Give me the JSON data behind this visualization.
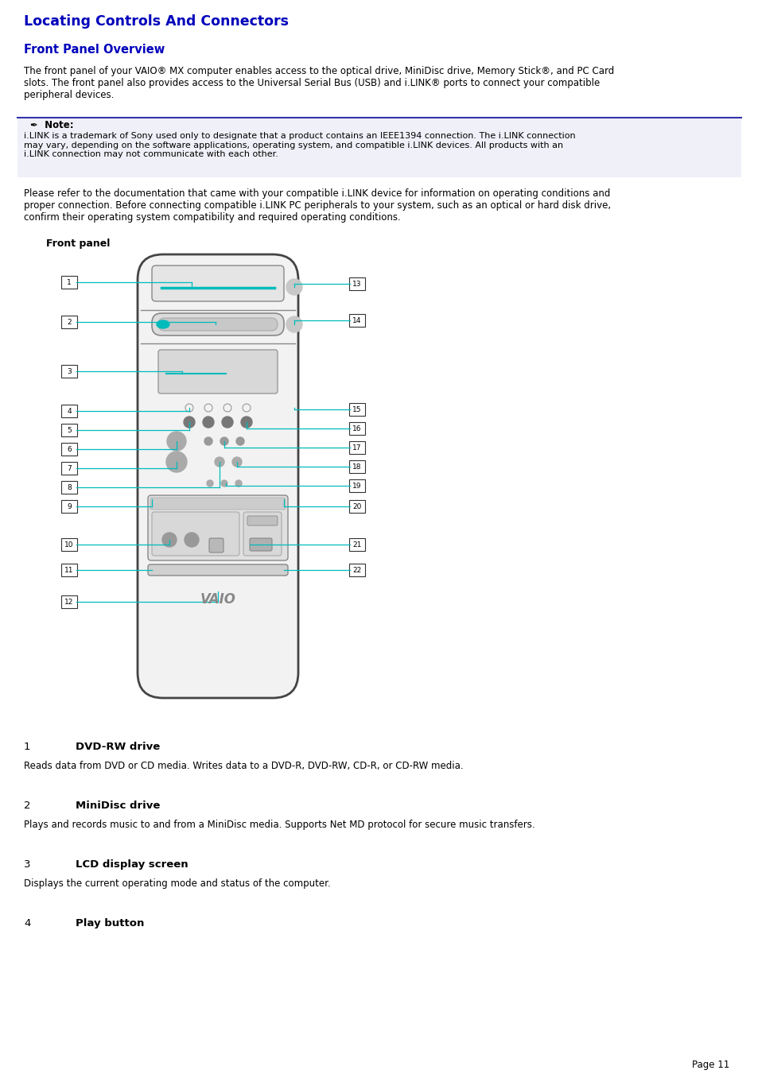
{
  "title": "Locating Controls And Connectors",
  "title_color": "#0000BB",
  "title_fontsize": 12.5,
  "subtitle": "Front Panel Overview",
  "subtitle_color": "#0000BB",
  "subtitle_fontsize": 10.5,
  "body_fontsize": 8.5,
  "para1": "The front panel of your VAIO® MX computer enables access to the optical drive, MiniDisc drive, Memory Stick®, and PC Card\nslots. The front panel also provides access to the Universal Serial Bus (USB) and i.LINK® ports to connect your compatible\nperipheral devices.",
  "note_text": "i.LINK is a trademark of Sony used only to designate that a product contains an IEEE1394 connection. The i.LINK connection\nmay vary, depending on the software applications, operating system, and compatible i.LINK devices. All products with an\ni.LINK connection may not communicate with each other.",
  "para2": "Please refer to the documentation that came with your compatible i.LINK device for information on operating conditions and\nproper connection. Before connecting compatible i.LINK PC peripherals to your system, such as an optical or hard disk drive,\nconfirm their operating system compatibility and required operating conditions.",
  "front_panel_label": "Front panel",
  "items": [
    {
      "num": "1",
      "name": "DVD-RW drive",
      "desc": "Reads data from DVD or CD media. Writes data to a DVD-R, DVD-RW, CD-R, or CD-RW media."
    },
    {
      "num": "2",
      "name": "MiniDisc drive",
      "desc": "Plays and records music to and from a MiniDisc media. Supports Net MD protocol for secure music transfers."
    },
    {
      "num": "3",
      "name": "LCD display screen",
      "desc": "Displays the current operating mode and status of the computer."
    },
    {
      "num": "4",
      "name": "Play button",
      "desc": ""
    }
  ],
  "page_num": "Page 11",
  "bg_color": "#ffffff",
  "cyan": "#00BBBB",
  "note_bg": "#f0f0f8",
  "note_border": "#3333AA"
}
